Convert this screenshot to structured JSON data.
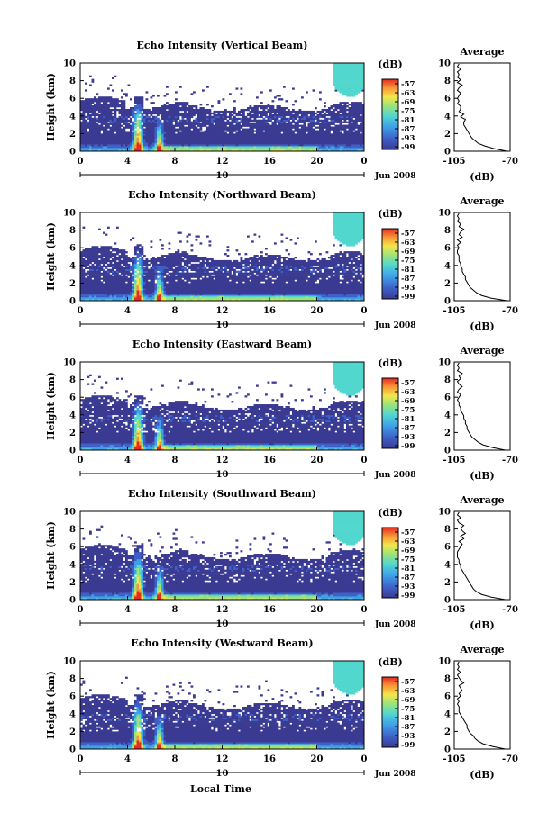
{
  "figure": {
    "xlabel": "Local Time",
    "ylabel": "Height (km)",
    "date_label": "Jun 2008",
    "date_marker": "10",
    "colorbar_unit": "(dB)",
    "avg_title": "Average",
    "avg_xlabel": "(dB)"
  },
  "chart_data": [
    {
      "type": "heatmap",
      "title": "Echo Intensity (Vertical Beam)",
      "xlabel": "",
      "ylabel": "Height (km)",
      "x_ticks": [
        "0",
        "4",
        "8",
        "12",
        "16",
        "20",
        "0"
      ],
      "y_ticks": [
        "0",
        "2",
        "4",
        "6",
        "8",
        "10"
      ],
      "xlim": [
        0,
        24
      ],
      "ylim": [
        0,
        10
      ],
      "colorbar": {
        "label": "(dB)",
        "ticks": [
          "-57",
          "-63",
          "-69",
          "-75",
          "-81",
          "-87",
          "-93",
          "-99"
        ]
      },
      "average_profile": {
        "title": "Average",
        "xlabel": "(dB)",
        "x_ticks": [
          "-105",
          "-70"
        ],
        "y_ticks": [
          "0",
          "2",
          "4",
          "6",
          "8",
          "10"
        ],
        "xlim": [
          -105,
          -70
        ],
        "height": [
          0,
          0.3,
          0.6,
          0.9,
          1.2,
          1.5,
          1.8,
          2.1,
          2.4,
          2.7,
          3.0,
          3.3,
          3.6,
          3.9,
          4.2,
          4.5,
          4.8,
          5.1,
          5.4,
          5.7,
          6.0,
          6.3,
          6.6,
          6.9,
          7.2,
          7.5,
          7.8,
          8.1,
          8.4,
          8.7,
          9.0,
          9.3,
          9.6,
          9.9
        ],
        "value": [
          -72,
          -80,
          -86,
          -90,
          -92,
          -94,
          -95,
          -96,
          -97,
          -98,
          -99,
          -99,
          -98,
          -101,
          -99,
          -102,
          -101,
          -101,
          -103,
          -102,
          -103,
          -102,
          -101,
          -103,
          -102,
          -100,
          -103,
          -101,
          -103,
          -102,
          -103,
          -101,
          -103,
          -102
        ]
      }
    },
    {
      "type": "heatmap",
      "title": "Echo Intensity (Northward Beam)",
      "xlabel": "",
      "ylabel": "Height (km)",
      "x_ticks": [
        "0",
        "4",
        "8",
        "12",
        "16",
        "20",
        "0"
      ],
      "y_ticks": [
        "0",
        "2",
        "4",
        "6",
        "8",
        "10"
      ],
      "xlim": [
        0,
        24
      ],
      "ylim": [
        0,
        10
      ],
      "colorbar": {
        "label": "(dB)",
        "ticks": [
          "-57",
          "-63",
          "-69",
          "-75",
          "-81",
          "-87",
          "-93",
          "-99"
        ]
      },
      "average_profile": {
        "title": "Average",
        "xlabel": "(dB)",
        "x_ticks": [
          "-105",
          "-70"
        ],
        "y_ticks": [
          "0",
          "2",
          "4",
          "6",
          "8",
          "10"
        ],
        "xlim": [
          -105,
          -70
        ],
        "height": [
          0,
          0.3,
          0.6,
          0.9,
          1.2,
          1.5,
          1.8,
          2.1,
          2.4,
          2.7,
          3.0,
          3.3,
          3.6,
          3.9,
          4.2,
          4.5,
          4.8,
          5.1,
          5.4,
          5.7,
          6.0,
          6.3,
          6.6,
          6.9,
          7.2,
          7.5,
          7.8,
          8.1,
          8.4,
          8.7,
          9.0,
          9.3,
          9.6,
          9.9
        ],
        "value": [
          -72,
          -82,
          -88,
          -91,
          -93,
          -95,
          -96,
          -97,
          -98,
          -98,
          -99,
          -100,
          -100,
          -101,
          -101,
          -102,
          -102,
          -102,
          -103,
          -103,
          -102,
          -103,
          -101,
          -103,
          -100,
          -102,
          -101,
          -99,
          -102,
          -101,
          -103,
          -102,
          -103,
          -102
        ]
      }
    },
    {
      "type": "heatmap",
      "title": "Echo Intensity (Eastward Beam)",
      "xlabel": "",
      "ylabel": "Height (km)",
      "x_ticks": [
        "0",
        "4",
        "8",
        "12",
        "16",
        "20",
        "0"
      ],
      "y_ticks": [
        "0",
        "2",
        "4",
        "6",
        "8",
        "10"
      ],
      "xlim": [
        0,
        24
      ],
      "ylim": [
        0,
        10
      ],
      "colorbar": {
        "label": "(dB)",
        "ticks": [
          "-57",
          "-63",
          "-69",
          "-75",
          "-81",
          "-87",
          "-93",
          "-99"
        ]
      },
      "average_profile": {
        "title": "Average",
        "xlabel": "(dB)",
        "x_ticks": [
          "-105",
          "-70"
        ],
        "y_ticks": [
          "0",
          "2",
          "4",
          "6",
          "8",
          "10"
        ],
        "xlim": [
          -105,
          -70
        ],
        "height": [
          0,
          0.3,
          0.6,
          0.9,
          1.2,
          1.5,
          1.8,
          2.1,
          2.4,
          2.7,
          3.0,
          3.3,
          3.6,
          3.9,
          4.2,
          4.5,
          4.8,
          5.1,
          5.4,
          5.7,
          6.0,
          6.3,
          6.6,
          6.9,
          7.2,
          7.5,
          7.8,
          8.1,
          8.4,
          8.7,
          9.0,
          9.3,
          9.6,
          9.9
        ],
        "value": [
          -73,
          -81,
          -87,
          -90,
          -92,
          -94,
          -95,
          -96,
          -97,
          -97,
          -98,
          -98,
          -99,
          -99,
          -100,
          -101,
          -101,
          -102,
          -102,
          -103,
          -102,
          -101,
          -103,
          -102,
          -100,
          -102,
          -103,
          -101,
          -102,
          -100,
          -103,
          -102,
          -103,
          -102
        ]
      }
    },
    {
      "type": "heatmap",
      "title": "Echo Intensity (Southward Beam)",
      "xlabel": "",
      "ylabel": "Height (km)",
      "x_ticks": [
        "0",
        "4",
        "8",
        "12",
        "16",
        "20",
        "0"
      ],
      "y_ticks": [
        "0",
        "2",
        "4",
        "6",
        "8",
        "10"
      ],
      "xlim": [
        0,
        24
      ],
      "ylim": [
        0,
        10
      ],
      "colorbar": {
        "label": "(dB)",
        "ticks": [
          "-57",
          "-63",
          "-69",
          "-75",
          "-81",
          "-87",
          "-93",
          "-99"
        ]
      },
      "average_profile": {
        "title": "Average",
        "xlabel": "(dB)",
        "x_ticks": [
          "-105",
          "-70"
        ],
        "y_ticks": [
          "0",
          "2",
          "4",
          "6",
          "8",
          "10"
        ],
        "xlim": [
          -105,
          -70
        ],
        "height": [
          0,
          0.3,
          0.6,
          0.9,
          1.2,
          1.5,
          1.8,
          2.1,
          2.4,
          2.7,
          3.0,
          3.3,
          3.6,
          3.9,
          4.2,
          4.5,
          4.8,
          5.1,
          5.4,
          5.7,
          6.0,
          6.3,
          6.6,
          6.9,
          7.2,
          7.5,
          7.8,
          8.1,
          8.4,
          8.7,
          9.0,
          9.3,
          9.6,
          9.9
        ],
        "value": [
          -73,
          -82,
          -88,
          -91,
          -93,
          -94,
          -95,
          -96,
          -97,
          -98,
          -99,
          -100,
          -101,
          -101,
          -102,
          -102,
          -103,
          -103,
          -103,
          -102,
          -101,
          -100,
          -102,
          -99,
          -101,
          -98,
          -100,
          -101,
          -99,
          -102,
          -103,
          -101,
          -103,
          -102
        ]
      }
    },
    {
      "type": "heatmap",
      "title": "Echo Intensity (Westward Beam)",
      "xlabel": "Local Time",
      "ylabel": "Height (km)",
      "x_ticks": [
        "0",
        "4",
        "8",
        "12",
        "16",
        "20",
        "0"
      ],
      "y_ticks": [
        "0",
        "2",
        "4",
        "6",
        "8",
        "10"
      ],
      "xlim": [
        0,
        24
      ],
      "ylim": [
        0,
        10
      ],
      "colorbar": {
        "label": "(dB)",
        "ticks": [
          "-57",
          "-63",
          "-69",
          "-75",
          "-81",
          "-87",
          "-93",
          "-99"
        ]
      },
      "average_profile": {
        "title": "Average",
        "xlabel": "(dB)",
        "x_ticks": [
          "-105",
          "-70"
        ],
        "y_ticks": [
          "0",
          "2",
          "4",
          "6",
          "8",
          "10"
        ],
        "xlim": [
          -105,
          -70
        ],
        "height": [
          0,
          0.3,
          0.6,
          0.9,
          1.2,
          1.5,
          1.8,
          2.1,
          2.4,
          2.7,
          3.0,
          3.3,
          3.6,
          3.9,
          4.2,
          4.5,
          4.8,
          5.1,
          5.4,
          5.7,
          6.0,
          6.3,
          6.6,
          6.9,
          7.2,
          7.5,
          7.8,
          8.1,
          8.4,
          8.7,
          9.0,
          9.3,
          9.6,
          9.9
        ],
        "value": [
          -73,
          -81,
          -87,
          -90,
          -92,
          -93,
          -95,
          -96,
          -97,
          -97,
          -98,
          -99,
          -100,
          -101,
          -102,
          -102,
          -102,
          -103,
          -102,
          -103,
          -101,
          -102,
          -100,
          -101,
          -102,
          -99,
          -101,
          -102,
          -103,
          -101,
          -103,
          -102,
          -103,
          -102
        ]
      }
    }
  ]
}
